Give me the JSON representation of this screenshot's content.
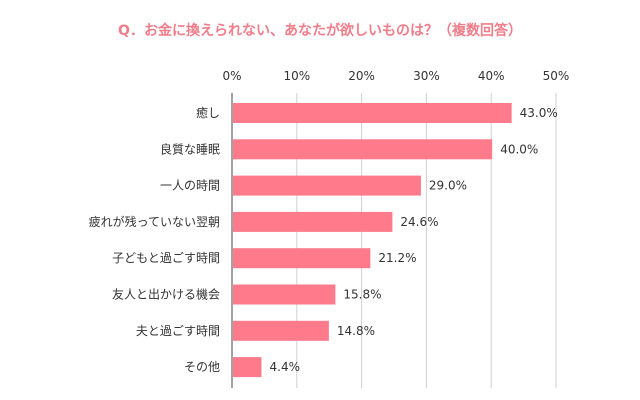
{
  "chart_data": {
    "type": "bar",
    "orientation": "horizontal",
    "title": "Q．お金に換えられない、あなたが欲しいものは？（複数回答）",
    "categories": [
      "癒し",
      "良質な睡眠",
      "一人の時間",
      "疲れが残っていない翌朝",
      "子どもと過ごす時間",
      "友人と出かける機会",
      "夫と過ごす時間",
      "その他"
    ],
    "values": [
      43.0,
      40.0,
      29.0,
      24.6,
      21.2,
      15.8,
      14.8,
      4.4
    ],
    "value_labels": [
      "43.0%",
      "40.0%",
      "29.0%",
      "24.6%",
      "21.2%",
      "15.8%",
      "14.8%",
      "4.4%"
    ],
    "x_ticks": [
      0,
      10,
      20,
      30,
      40,
      50
    ],
    "x_tick_labels": [
      "0%",
      "10%",
      "20%",
      "30%",
      "40%",
      "50%"
    ],
    "xlim": [
      0,
      50
    ],
    "grid": true,
    "colors": {
      "bar": "#ff7b8b",
      "title": "#f07d8a",
      "grid": "#cfcfcf",
      "text": "#333333"
    }
  }
}
